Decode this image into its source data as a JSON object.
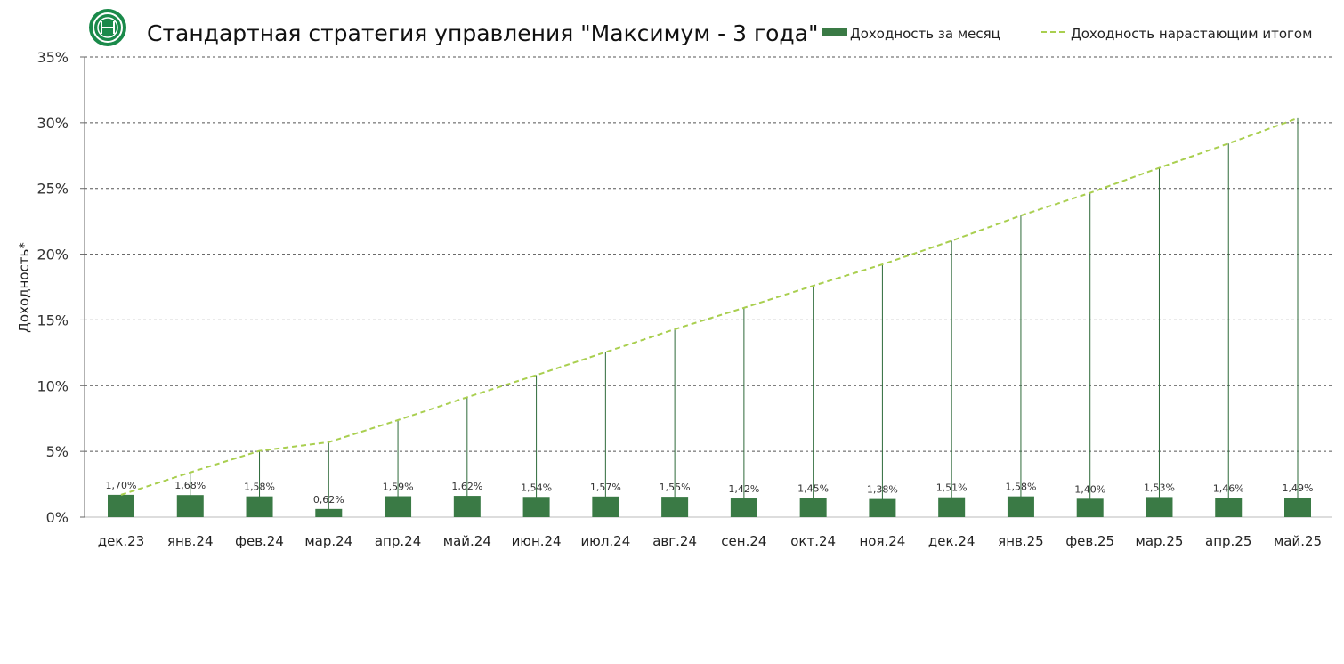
{
  "chart_data": {
    "type": "bar",
    "title": "Стандартная стратегия управления \"Максимум - 3 года\"",
    "ylabel": "Доходность*",
    "xlabel": "",
    "ylim": [
      0,
      35
    ],
    "yticks": [
      0,
      5,
      10,
      15,
      20,
      25,
      30,
      35
    ],
    "ytick_labels": [
      "0%",
      "5%",
      "10%",
      "15%",
      "20%",
      "25%",
      "30%",
      "35%"
    ],
    "grid": true,
    "legend_position": "top-right",
    "categories": [
      "дек.23",
      "янв.24",
      "фев.24",
      "мар.24",
      "апр.24",
      "май.24",
      "июн.24",
      "июл.24",
      "авг.24",
      "сен.24",
      "окт.24",
      "ноя.24",
      "дек.24",
      "янв.25",
      "фев.25",
      "мар.25",
      "апр.25",
      "май.25"
    ],
    "series": [
      {
        "name": "Доходность за месяц",
        "kind": "bar",
        "color": "#3a7a45",
        "values": [
          1.7,
          1.68,
          1.58,
          0.62,
          1.59,
          1.62,
          1.54,
          1.57,
          1.55,
          1.42,
          1.45,
          1.38,
          1.51,
          1.58,
          1.4,
          1.53,
          1.46,
          1.49
        ],
        "labels": [
          "1,70%",
          "1,68%",
          "1,58%",
          "0,62%",
          "1,59%",
          "1,62%",
          "1,54%",
          "1,57%",
          "1,55%",
          "1,42%",
          "1,45%",
          "1,38%",
          "1,51%",
          "1,58%",
          "1,40%",
          "1,53%",
          "1,46%",
          "1,49%"
        ]
      },
      {
        "name": "Доходность нарастающим итогом",
        "kind": "dashed-line",
        "color": "#a9cf4f",
        "values": [
          1.7,
          3.4,
          5.04,
          5.7,
          7.38,
          9.12,
          10.8,
          12.55,
          14.29,
          15.92,
          17.6,
          19.22,
          21.02,
          22.94,
          24.66,
          26.57,
          28.42,
          30.34
        ]
      }
    ],
    "colors": {
      "bar": "#3a7a45",
      "line": "#a9cf4f",
      "grid": "#555555",
      "logo": "#1a8a4a"
    }
  }
}
